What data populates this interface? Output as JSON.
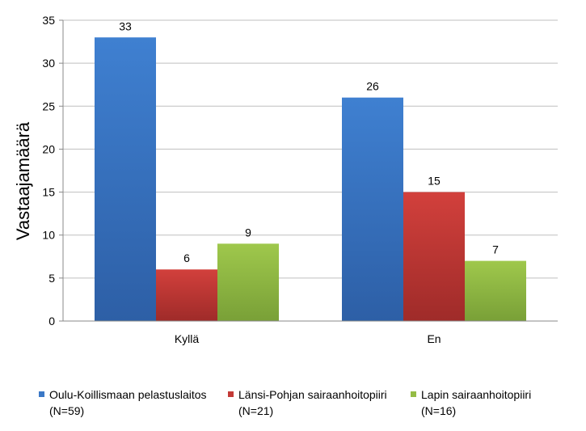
{
  "chart_data": {
    "type": "bar",
    "categories": [
      "Kyllä",
      "En"
    ],
    "ylabel": "Vastaajamäärä",
    "xlabel": "",
    "ylim": [
      0,
      35
    ],
    "yticks": [
      0,
      5,
      10,
      15,
      20,
      25,
      30,
      35
    ],
    "grid": true,
    "legend_position": "bottom",
    "series": [
      {
        "name": "Oulu-Koillismaan pelastuslaitos",
        "name_line2": "(N=59)",
        "color": "#3b78c6",
        "values": [
          33,
          26
        ]
      },
      {
        "name": "Länsi-Pohjan sairaanhoitopiiri",
        "name_line2": "(N=21)",
        "color": "#c33a37",
        "values": [
          6,
          15
        ]
      },
      {
        "name": "Lapin sairaanhoitopiiri",
        "name_line2": "(N=16)",
        "color": "#95bc45",
        "values": [
          9,
          7
        ]
      }
    ]
  }
}
